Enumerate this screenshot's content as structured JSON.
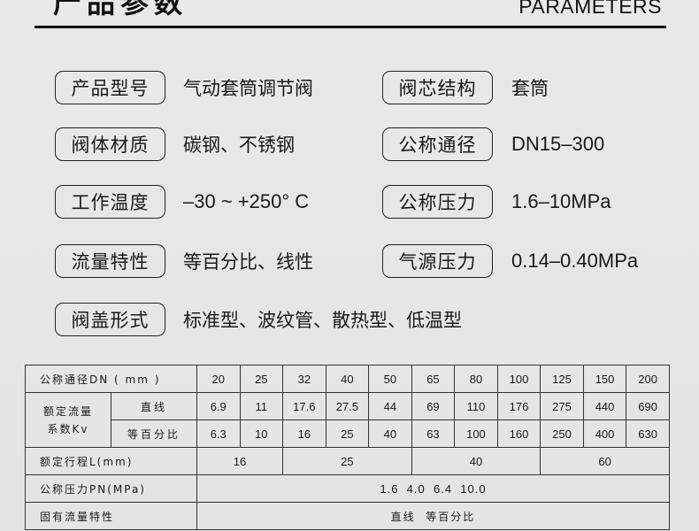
{
  "header": {
    "title_cn": "产品参数",
    "title_en": "PARAMETERS"
  },
  "specs": [
    {
      "label": "产品型号",
      "value": "气动套筒调节阀"
    },
    {
      "label": "阀芯结构",
      "value": "套筒"
    },
    {
      "label": "阀体材质",
      "value": "碳钢、不锈钢"
    },
    {
      "label": "公称通径",
      "value": "DN15–300"
    },
    {
      "label": "工作温度",
      "value": "–30 ~ +250°  C"
    },
    {
      "label": "公称压力",
      "value": "1.6–10MPa"
    },
    {
      "label": "流量特性",
      "value": "等百分比、线性"
    },
    {
      "label": "气源压力",
      "value": "0.14–0.40MPa"
    },
    {
      "label": "阀盖形式",
      "value": "标准型、波纹管、散热型、低温型"
    }
  ],
  "table": {
    "dn_label": "公称通径DN ( mm )",
    "dn": [
      "20",
      "25",
      "32",
      "40",
      "50",
      "65",
      "80",
      "100",
      "125",
      "150",
      "200"
    ],
    "kv_label": "额定流量\n系数Kv",
    "kv_linear_label": "直线",
    "kv_linear": [
      "6.9",
      "11",
      "17.6",
      "27.5",
      "44",
      "69",
      "110",
      "176",
      "275",
      "440",
      "690"
    ],
    "kv_eq_label": "等百分比",
    "kv_eq": [
      "6.3",
      "10",
      "16",
      "25",
      "40",
      "63",
      "100",
      "160",
      "250",
      "400",
      "630"
    ],
    "stroke_label": "额定行程L(mm)",
    "stroke": [
      "16",
      "25",
      "40",
      "60"
    ],
    "pn_label": "公称压力PN(MPa)",
    "pn": "1.6  4.0  6.4  10.0",
    "char_label": "固有流量特性",
    "char": "直线  等百分比"
  }
}
